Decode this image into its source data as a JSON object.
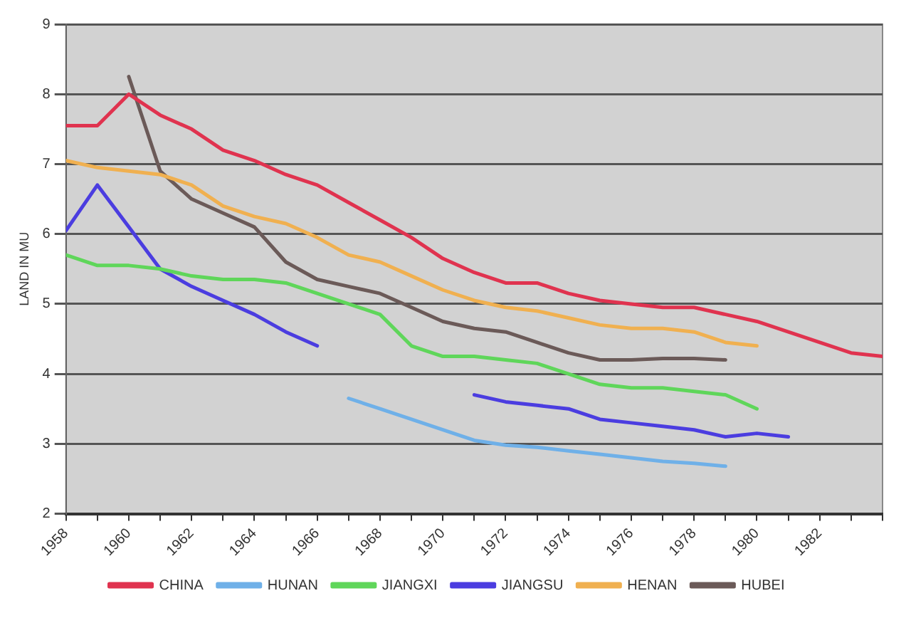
{
  "chart_data": {
    "type": "line",
    "ylabel": "LAND IN MU",
    "x": [
      1958,
      1959,
      1960,
      1961,
      1962,
      1963,
      1964,
      1965,
      1966,
      1967,
      1968,
      1969,
      1970,
      1971,
      1972,
      1973,
      1974,
      1975,
      1976,
      1977,
      1978,
      1979,
      1980,
      1981,
      1982,
      1983,
      1984
    ],
    "series": [
      {
        "name": "CHINA",
        "color": "#e0334f",
        "values": [
          7.55,
          7.55,
          8.0,
          7.7,
          7.5,
          7.2,
          7.05,
          6.85,
          6.7,
          6.45,
          6.2,
          5.95,
          5.65,
          5.45,
          5.3,
          5.3,
          5.15,
          5.05,
          5.0,
          4.95,
          4.95,
          4.85,
          4.75,
          4.6,
          4.45,
          4.3,
          4.25
        ]
      },
      {
        "name": "HUNAN",
        "color": "#6fb0e8",
        "values": [
          null,
          null,
          null,
          null,
          null,
          null,
          null,
          null,
          null,
          3.65,
          3.5,
          3.35,
          3.2,
          3.05,
          2.98,
          2.95,
          2.9,
          2.85,
          2.8,
          2.75,
          2.72,
          2.68,
          null,
          null,
          null,
          null,
          null
        ]
      },
      {
        "name": "JIANGXI",
        "color": "#5fd65a",
        "values": [
          5.7,
          5.55,
          5.55,
          5.5,
          5.4,
          5.35,
          5.35,
          5.3,
          5.15,
          5.0,
          4.85,
          4.4,
          4.25,
          4.25,
          4.2,
          4.15,
          4.0,
          3.85,
          3.8,
          3.8,
          3.75,
          3.7,
          3.5,
          null,
          null,
          null,
          null
        ]
      },
      {
        "name": "JIANGSU",
        "color": "#4b3de0",
        "values": [
          6.05,
          6.7,
          6.1,
          5.5,
          5.25,
          5.05,
          4.85,
          4.6,
          4.4,
          null,
          null,
          null,
          null,
          3.7,
          3.6,
          3.55,
          3.5,
          3.35,
          3.3,
          3.25,
          3.2,
          3.1,
          3.15,
          3.1,
          null,
          null,
          null
        ]
      },
      {
        "name": "HENAN",
        "color": "#f0b050",
        "values": [
          7.05,
          6.95,
          6.9,
          6.85,
          6.7,
          6.4,
          6.25,
          6.15,
          5.95,
          5.7,
          5.6,
          5.4,
          5.2,
          5.05,
          4.95,
          4.9,
          4.8,
          4.7,
          4.65,
          4.65,
          4.6,
          4.45,
          4.4,
          null,
          null,
          null,
          null
        ]
      },
      {
        "name": "HUBEI",
        "color": "#6b5a58",
        "values": [
          null,
          null,
          8.25,
          6.9,
          6.5,
          6.3,
          6.1,
          5.6,
          5.35,
          5.25,
          5.15,
          4.95,
          4.75,
          4.65,
          4.6,
          4.45,
          4.3,
          4.2,
          4.2,
          4.22,
          4.22,
          4.2,
          null,
          null,
          null,
          null,
          null
        ]
      }
    ],
    "xlim": [
      1958,
      1984
    ],
    "xticks": [
      1958,
      {
        "value": 1959,
        "label": null
      },
      1960,
      {
        "value": 1961,
        "label": null
      },
      1962,
      {
        "value": 1963,
        "label": null
      },
      1964,
      {
        "value": 1965,
        "label": null
      },
      1966,
      {
        "value": 1967,
        "label": null
      },
      1968,
      {
        "value": 1969,
        "label": null
      },
      1970,
      {
        "value": 1971,
        "label": null
      },
      1972,
      {
        "value": 1973,
        "label": null
      },
      1974,
      {
        "value": 1975,
        "label": null
      },
      1976,
      {
        "value": 1977,
        "label": null
      },
      1978,
      {
        "value": 1979,
        "label": null
      },
      1980,
      {
        "value": 1981,
        "label": null
      },
      1982,
      {
        "value": 1983,
        "label": null
      },
      {
        "value": 1984,
        "label": null
      }
    ],
    "ylim": [
      2,
      9
    ],
    "yticks": [
      2,
      3,
      4,
      5,
      6,
      7,
      8,
      9
    ],
    "grid": "y",
    "legend": "bottom",
    "marker": "none",
    "line_style": "solid"
  }
}
